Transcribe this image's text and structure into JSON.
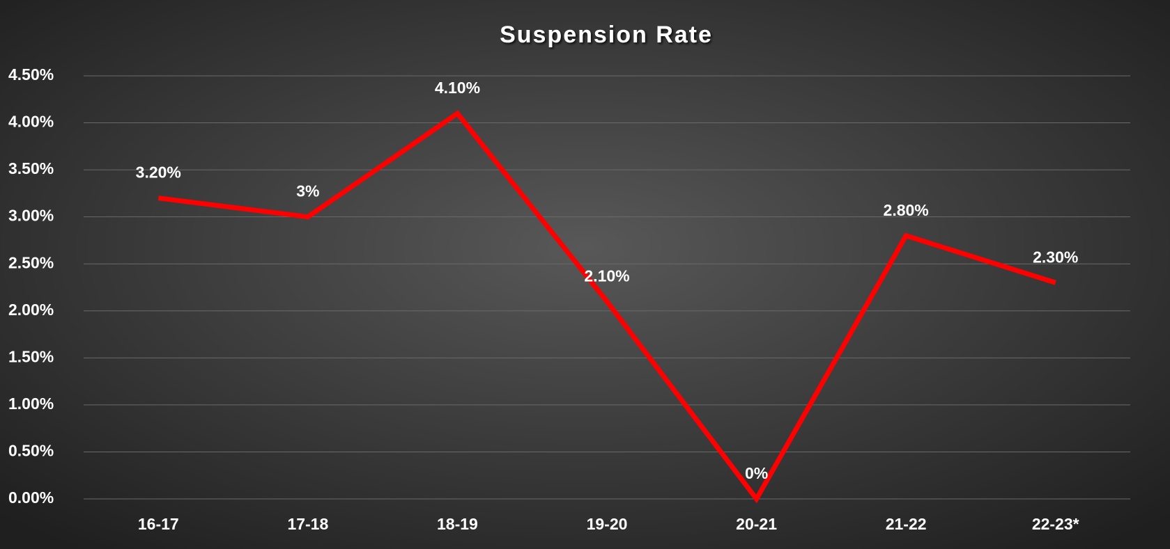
{
  "chart_data": {
    "type": "line",
    "title": "Suspension Rate",
    "categories": [
      "16-17",
      "17-18",
      "18-19",
      "19-20",
      "20-21",
      "21-22",
      "22-23*"
    ],
    "series": [
      {
        "name": "Suspension Rate",
        "color": "#ff0000",
        "values": [
          3.2,
          3,
          4.1,
          2.1,
          0,
          2.8,
          2.3
        ],
        "value_labels": [
          "3.20%",
          "3%",
          "4.10%",
          "2.10%",
          "0%",
          "2.80%",
          "2.30%"
        ]
      }
    ],
    "ylim": [
      0,
      4.5
    ],
    "yticks": [
      {
        "value": 0,
        "label": "0.00%"
      },
      {
        "value": 0.5,
        "label": "0.50%"
      },
      {
        "value": 1,
        "label": "1.00%"
      },
      {
        "value": 1.5,
        "label": "1.50%"
      },
      {
        "value": 2,
        "label": "2.00%"
      },
      {
        "value": 2.5,
        "label": "2.50%"
      },
      {
        "value": 3,
        "label": "3.00%"
      },
      {
        "value": 3.5,
        "label": "3.50%"
      },
      {
        "value": 4,
        "label": "4.00%"
      },
      {
        "value": 4.5,
        "label": "4.50%"
      }
    ],
    "grid": true
  }
}
